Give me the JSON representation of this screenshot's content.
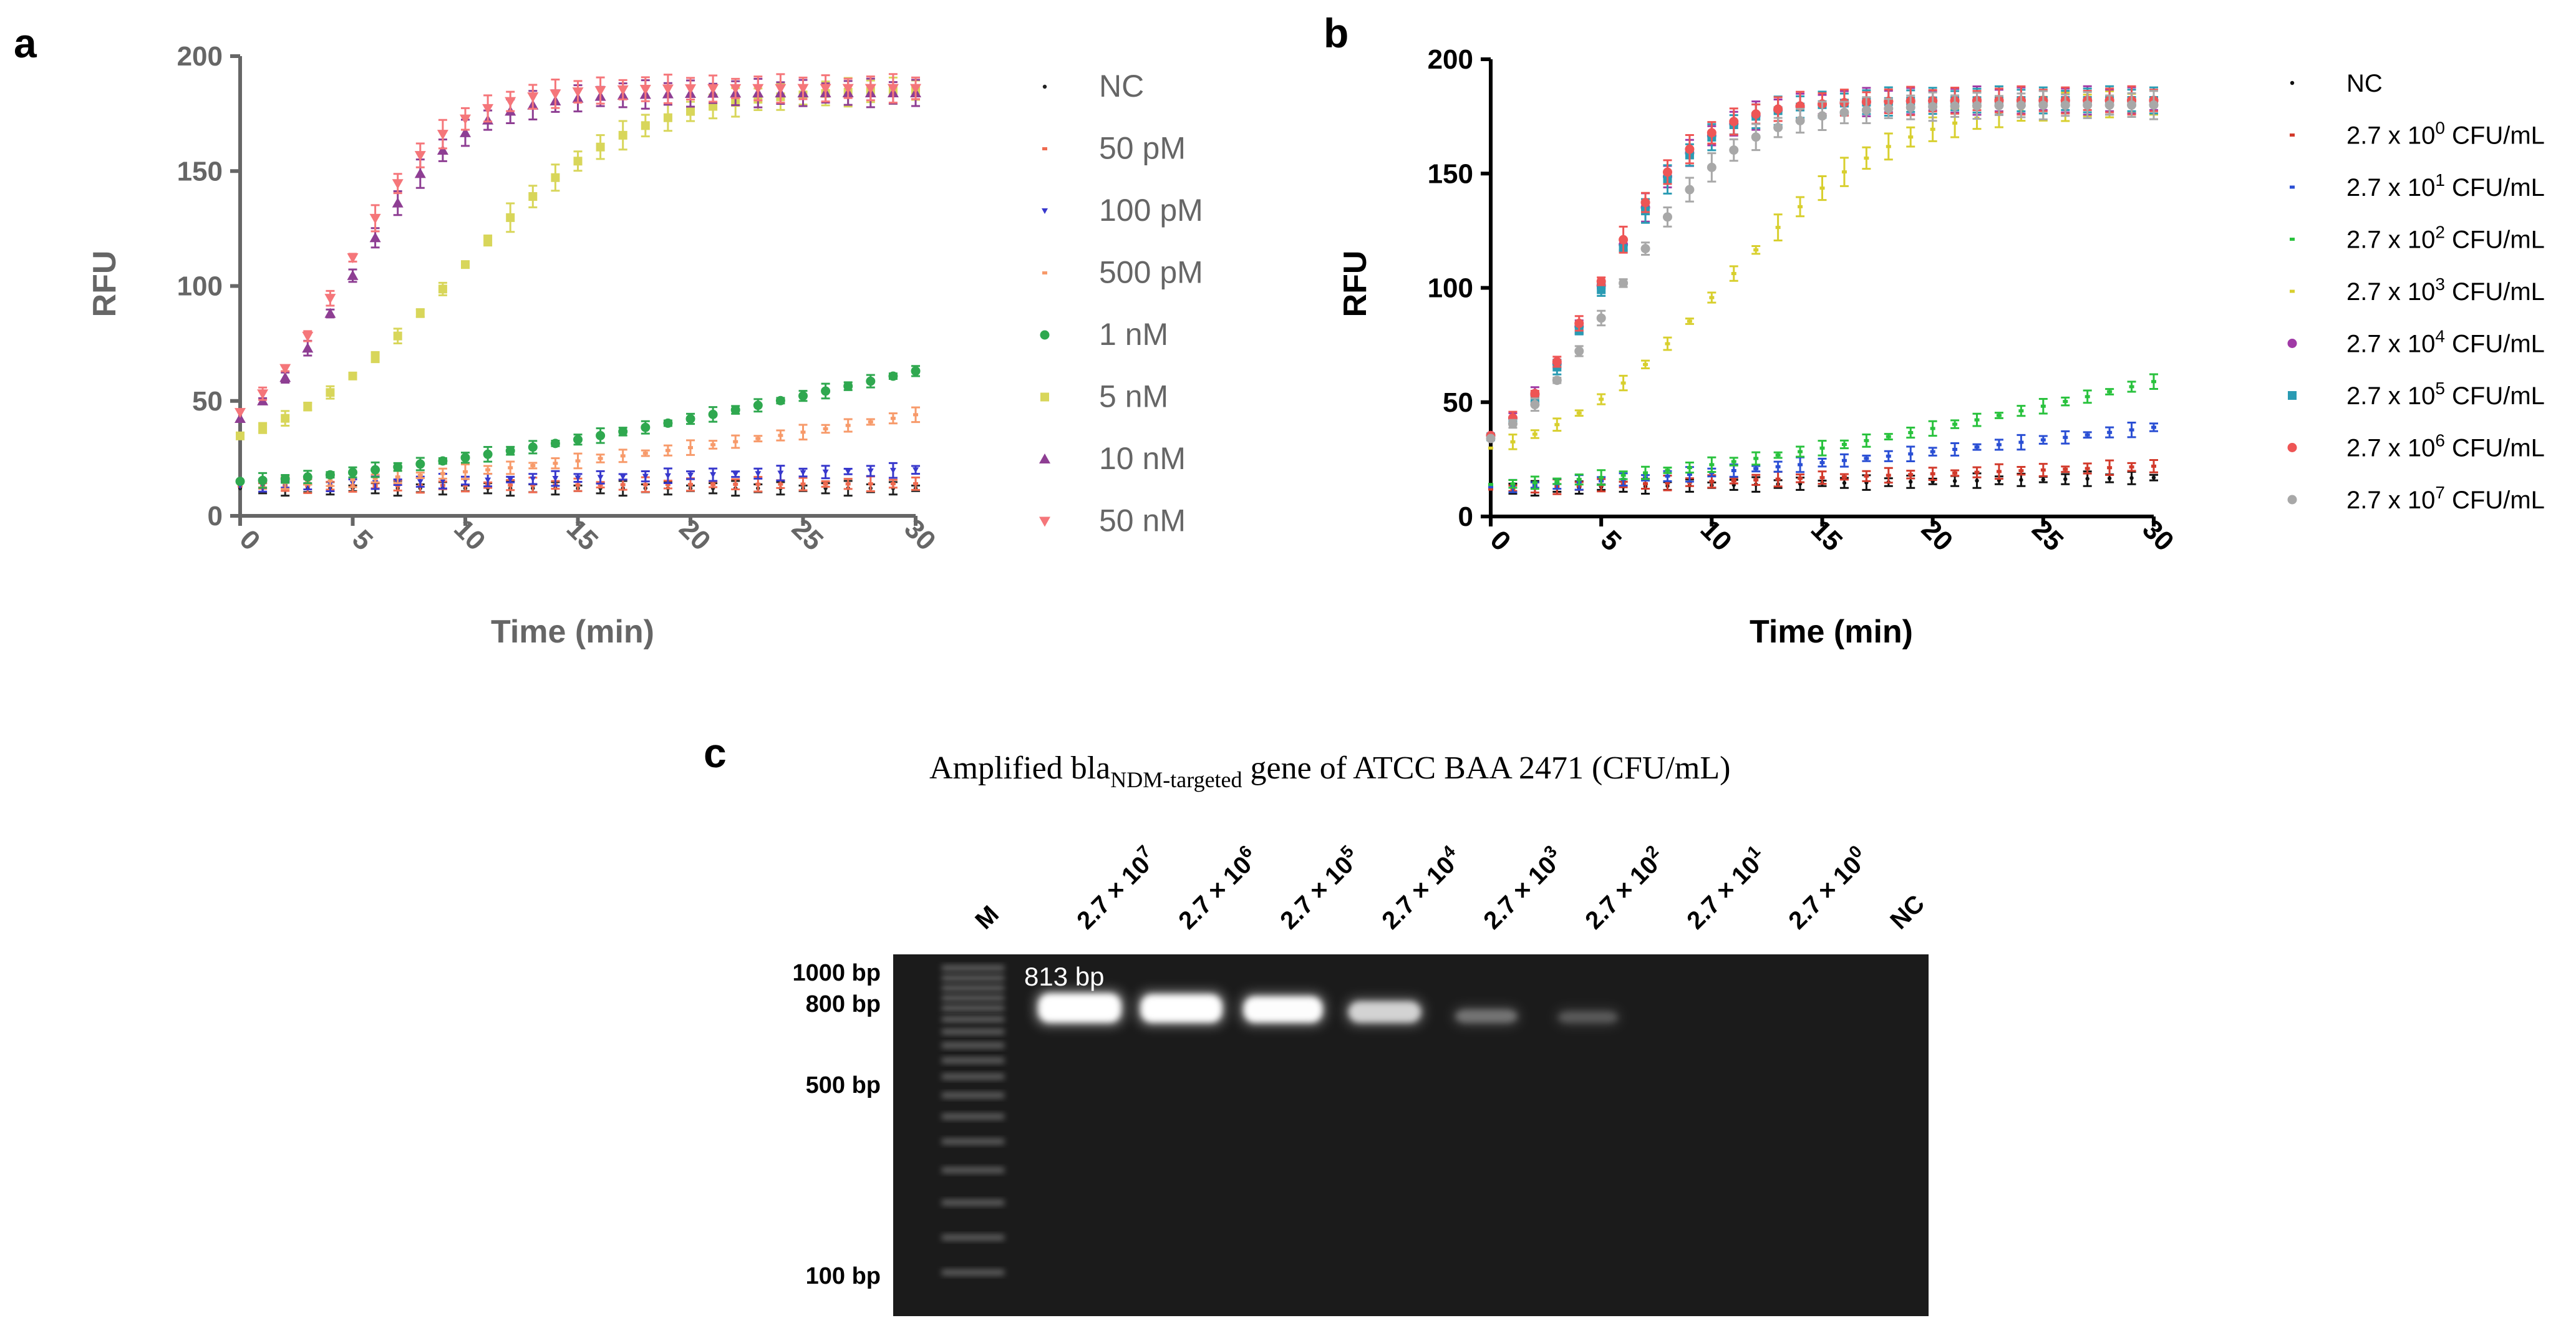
{
  "panel_labels": {
    "a": "a",
    "b": "b",
    "c": "c"
  },
  "chart_data": [
    {
      "panel": "a",
      "type": "scatter",
      "xlabel": "Time (min)",
      "ylabel": "RFU",
      "xlim": [
        0,
        30
      ],
      "ylim": [
        0,
        200
      ],
      "xticks": [
        0,
        5,
        10,
        15,
        20,
        25,
        30
      ],
      "yticks": [
        0,
        50,
        100,
        150,
        200
      ],
      "legend_position": "right",
      "series": [
        {
          "name": "NC",
          "color": "#222222",
          "marker": "dot-small",
          "model": {
            "kind": "linear",
            "start": 12,
            "end": 12
          }
        },
        {
          "name": "50 pM",
          "color": "#ef6b50",
          "marker": "small",
          "model": {
            "kind": "linear",
            "start": 13,
            "end": 14
          }
        },
        {
          "name": "100 pM",
          "color": "#3838cc",
          "marker": "tri-down-small",
          "model": {
            "kind": "linear",
            "start": 13,
            "end": 20
          }
        },
        {
          "name": "500 pM",
          "color": "#f79a6a",
          "marker": "small",
          "model": {
            "kind": "power",
            "start": 14,
            "end": 44,
            "exp": 1.6
          }
        },
        {
          "name": "1 nM",
          "color": "#2fa84f",
          "marker": "circle",
          "model": {
            "kind": "power",
            "start": 15,
            "end": 63,
            "exp": 1.4
          }
        },
        {
          "name": "5 nM",
          "color": "#d8d65a",
          "marker": "square",
          "model": {
            "kind": "sigmoid",
            "lo": 22,
            "hi": 186,
            "mid": 9.5,
            "k": 0.26
          }
        },
        {
          "name": "10 nM",
          "color": "#8e3e93",
          "marker": "triangle",
          "model": {
            "kind": "sigmoid",
            "lo": 25,
            "hi": 184,
            "mid": 5.0,
            "k": 0.42
          }
        },
        {
          "name": "50 nM",
          "color": "#f5767a",
          "marker": "tri-down",
          "model": {
            "kind": "sigmoid",
            "lo": 28,
            "hi": 186,
            "mid": 4.7,
            "k": 0.45
          }
        }
      ]
    },
    {
      "panel": "b",
      "type": "scatter",
      "xlabel": "Time (min)",
      "ylabel": "RFU",
      "xlim": [
        0,
        30
      ],
      "ylim": [
        0,
        200
      ],
      "xticks": [
        0,
        5,
        10,
        15,
        20,
        25,
        30
      ],
      "yticks": [
        0,
        50,
        100,
        150,
        200
      ],
      "legend_position": "right",
      "series": [
        {
          "name": "NC",
          "label": {
            "pre": "NC"
          },
          "color": "#111111",
          "marker": "dot-small",
          "model": {
            "kind": "linear",
            "start": 12,
            "end": 17
          }
        },
        {
          "name": "2.7 x 10^0 CFU/mL",
          "label": {
            "pre": "2.7 x 10",
            "exp": "0",
            "post": " CFU/mL"
          },
          "color": "#d23a2b",
          "marker": "small",
          "model": {
            "kind": "linear",
            "start": 12,
            "end": 22
          }
        },
        {
          "name": "2.7 x 10^1 CFU/mL",
          "label": {
            "pre": "2.7 x 10",
            "exp": "1",
            "post": " CFU/mL"
          },
          "color": "#2a4fd4",
          "marker": "small",
          "model": {
            "kind": "power",
            "start": 13,
            "end": 39,
            "exp": 1.3
          }
        },
        {
          "name": "2.7 x 10^2 CFU/mL",
          "label": {
            "pre": "2.7 x 10",
            "exp": "2",
            "post": " CFU/mL"
          },
          "color": "#29c23d",
          "marker": "small",
          "model": {
            "kind": "power",
            "start": 14,
            "end": 59,
            "exp": 1.5
          }
        },
        {
          "name": "2.7 x 10^3 CFU/mL",
          "label": {
            "pre": "2.7 x 10",
            "exp": "3",
            "post": " CFU/mL"
          },
          "color": "#d8cf2e",
          "marker": "small",
          "model": {
            "kind": "sigmoid",
            "lo": 20,
            "hi": 182,
            "mid": 10.5,
            "k": 0.26
          }
        },
        {
          "name": "2.7 x 10^4 CFU/mL",
          "label": {
            "pre": "2.7 x 10",
            "exp": "4",
            "post": " CFU/mL"
          },
          "color": "#a03aa6",
          "marker": "circle",
          "model": {
            "kind": "sigmoid",
            "lo": 20,
            "hi": 182,
            "mid": 5.0,
            "k": 0.45
          }
        },
        {
          "name": "2.7 x 10^5 CFU/mL",
          "label": {
            "pre": "2.7 x 10",
            "exp": "5",
            "post": " CFU/mL"
          },
          "color": "#2a9bb3",
          "marker": "square",
          "model": {
            "kind": "sigmoid",
            "lo": 20,
            "hi": 182,
            "mid": 5.1,
            "k": 0.45
          }
        },
        {
          "name": "2.7 x 10^6 CFU/mL",
          "label": {
            "pre": "2.7 x 10",
            "exp": "6",
            "post": " CFU/mL"
          },
          "color": "#ee5555",
          "marker": "circle",
          "model": {
            "kind": "sigmoid",
            "lo": 20,
            "hi": 182,
            "mid": 4.9,
            "k": 0.46
          }
        },
        {
          "name": "2.7 x 10^7 CFU/mL",
          "label": {
            "pre": "2.7 x 10",
            "exp": "7",
            "post": " CFU/mL"
          },
          "color": "#a8a8a8",
          "marker": "circle",
          "model": {
            "kind": "sigmoid",
            "lo": 18,
            "hi": 180,
            "mid": 5.8,
            "k": 0.38
          }
        }
      ]
    }
  ],
  "gel": {
    "title_pre": "Amplified bla",
    "title_sub": "NDM-targeted",
    "title_post": " gene of ATCC BAA 2471 (CFU/mL)",
    "lanes": [
      {
        "label": {
          "pre": "M"
        },
        "intensity": 0
      },
      {
        "label": {
          "pre": "2.7 × 10",
          "exp": "7"
        },
        "intensity": 1.0
      },
      {
        "label": {
          "pre": "2.7 × 10",
          "exp": "6"
        },
        "intensity": 0.95
      },
      {
        "label": {
          "pre": "2.7 × 10",
          "exp": "5"
        },
        "intensity": 0.85
      },
      {
        "label": {
          "pre": "2.7 × 10",
          "exp": "4"
        },
        "intensity": 0.6
      },
      {
        "label": {
          "pre": "2.7 × 10",
          "exp": "3"
        },
        "intensity": 0.18
      },
      {
        "label": {
          "pre": "2.7 × 10",
          "exp": "2"
        },
        "intensity": 0.08
      },
      {
        "label": {
          "pre": "2.7 × 10",
          "exp": "1"
        },
        "intensity": 0.0
      },
      {
        "label": {
          "pre": "2.7 × 10",
          "exp": "0"
        },
        "intensity": 0.0
      },
      {
        "label": {
          "pre": "NC"
        },
        "intensity": 0.0
      }
    ],
    "markers": [
      "1000 bp",
      "800 bp",
      "500 bp",
      "100 bp"
    ],
    "band_label": "813 bp"
  }
}
